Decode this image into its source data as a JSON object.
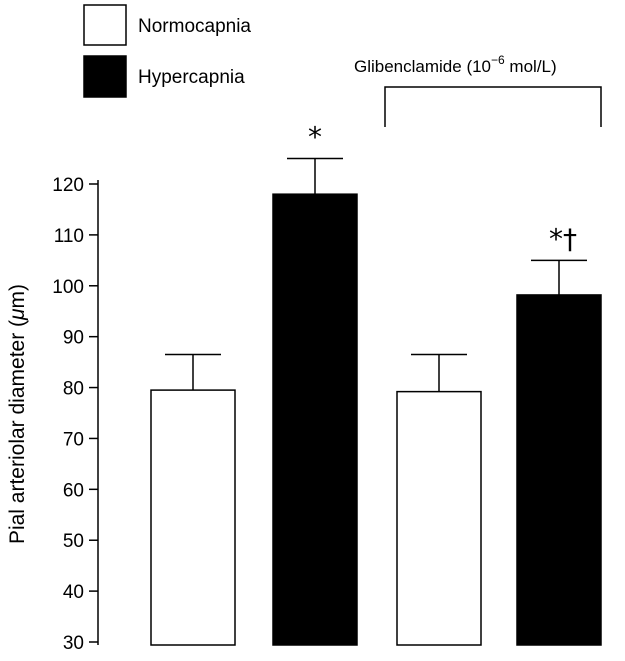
{
  "chart_data": {
    "type": "bar",
    "categories": [
      "Normocapnia",
      "Hypercapnia",
      "Normocapnia + Glibenclamide",
      "Hypercapnia + Glibenclamide"
    ],
    "values": [
      79.5,
      118,
      79.2,
      98.2
    ],
    "error_upper": [
      86.5,
      125,
      86.5,
      105
    ],
    "annotations": [
      "",
      "*",
      "",
      "*†"
    ],
    "bar_colors": [
      "#ffffff",
      "#000000",
      "#ffffff",
      "#000000"
    ],
    "ylabel_prefix": "Pial arteriolar diameter (",
    "ylabel_unit": "μ",
    "ylabel_suffix": "m)",
    "ylim": [
      30,
      125
    ],
    "yticks": [
      30,
      40,
      50,
      60,
      70,
      80,
      90,
      100,
      110,
      120
    ],
    "grid": false,
    "legend": {
      "placement": "top-left",
      "entries": [
        {
          "label": "Normocapnia",
          "color": "#ffffff"
        },
        {
          "label": "Hypercapnia",
          "color": "#000000"
        }
      ]
    },
    "group_bracket": {
      "label_main": "Glibenclamide (10",
      "label_exp": "−6",
      "label_tail": " mol/L)",
      "spans": [
        2,
        3
      ]
    }
  }
}
